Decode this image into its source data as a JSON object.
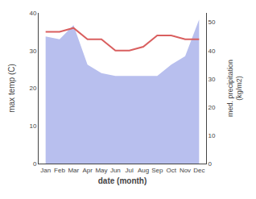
{
  "chart_data": {
    "type": "line",
    "categories": [
      "Jan",
      "Feb",
      "Mar",
      "Apr",
      "May",
      "Jun",
      "Jul",
      "Aug",
      "Sep",
      "Oct",
      "Nov",
      "Dec"
    ],
    "series": [
      {
        "type": "area",
        "axis": "y2",
        "color": "#b8bfee",
        "values": [
          45,
          44,
          49,
          35,
          32,
          31,
          31,
          31,
          31,
          35,
          38,
          51
        ]
      },
      {
        "type": "line",
        "color": "#d95f5f",
        "values": [
          35.0,
          35.0,
          36.0,
          33.0,
          33.0,
          30.0,
          30.0,
          31.0,
          34.0,
          34.0,
          33.0,
          33.0
        ]
      }
    ],
    "xlabel": "date (month)",
    "ylabel": "max temp (C)",
    "y2label": "med. precipitation\n(kg/m2)",
    "ylim": [
      0,
      40
    ],
    "yticks": [
      0,
      10,
      20,
      30,
      40
    ],
    "y2lim": [
      0,
      53.33
    ],
    "y2ticks": [
      0,
      10,
      20,
      30,
      40,
      50
    ],
    "grid": false
  }
}
